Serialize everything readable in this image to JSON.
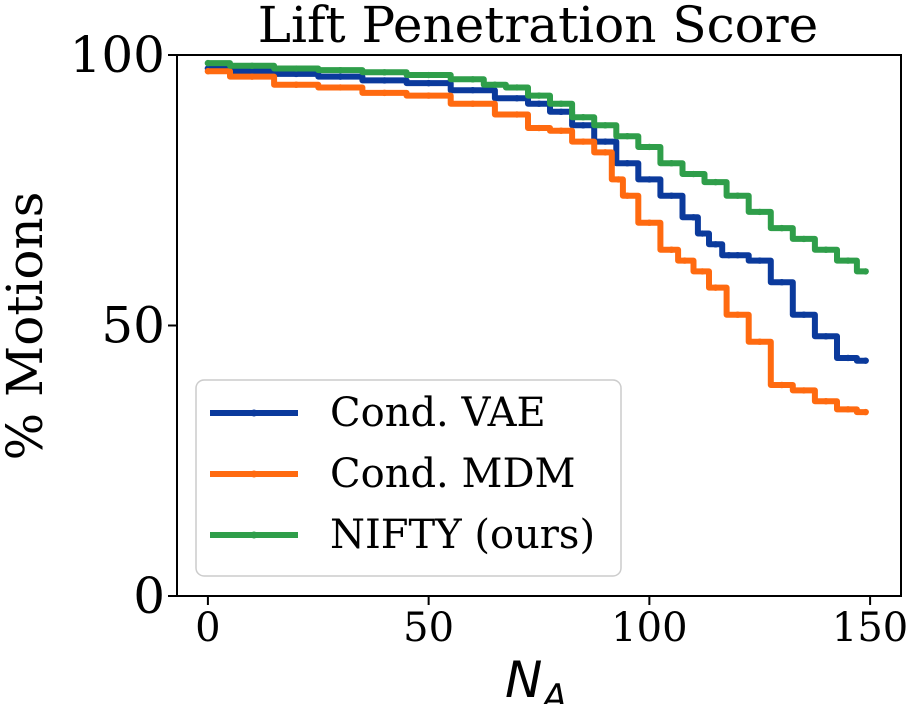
{
  "chart_data": {
    "type": "line",
    "title": "Lift Penetration Score",
    "xlabel_main": "N",
    "xlabel_sub": "A",
    "ylabel": "% Motions",
    "xlim": [
      -7,
      157
    ],
    "ylim": [
      0,
      100
    ],
    "xticks": [
      0,
      50,
      100,
      150
    ],
    "yticks": [
      0,
      50,
      100
    ],
    "grid": false,
    "legend_position": "lower-left",
    "series": [
      {
        "name": "Cond. VAE",
        "color": "#0b3a9c",
        "x": [
          0,
          10,
          20,
          30,
          40,
          50,
          60,
          70,
          75,
          80,
          85,
          90,
          95,
          100,
          105,
          110,
          112,
          115,
          118,
          120,
          125,
          130,
          135,
          140,
          145,
          149
        ],
        "y": [
          97.5,
          97,
          96.5,
          96,
          95.3,
          94.8,
          93.5,
          92,
          91,
          89.5,
          87,
          84,
          80,
          77,
          74,
          70,
          67,
          65,
          63,
          63,
          62,
          58,
          52,
          48,
          44,
          43.5
        ]
      },
      {
        "name": "Cond. MDM",
        "color": "#ff6a10",
        "x": [
          0,
          10,
          20,
          30,
          40,
          50,
          60,
          70,
          75,
          80,
          85,
          90,
          93,
          95,
          100,
          105,
          108,
          112,
          115,
          120,
          125,
          130,
          135,
          140,
          145,
          149
        ],
        "y": [
          97,
          96,
          94.5,
          94,
          93,
          92.5,
          91,
          89,
          86.5,
          86,
          84,
          82,
          77,
          74,
          69,
          64,
          62,
          60,
          57,
          52,
          47,
          39,
          38,
          36,
          34.5,
          34
        ]
      },
      {
        "name": "NIFTY (ours)",
        "color": "#2f9e4a",
        "x": [
          0,
          10,
          20,
          30,
          40,
          50,
          60,
          65,
          70,
          75,
          80,
          85,
          90,
          95,
          100,
          105,
          110,
          115,
          120,
          125,
          130,
          135,
          140,
          145,
          149
        ],
        "y": [
          98.5,
          98,
          97.5,
          97.2,
          96.8,
          96.3,
          95.5,
          94.5,
          94,
          92.5,
          91,
          88.5,
          87,
          85,
          83,
          80,
          78,
          76.5,
          74,
          71,
          68,
          66,
          64,
          62,
          60
        ]
      }
    ]
  }
}
